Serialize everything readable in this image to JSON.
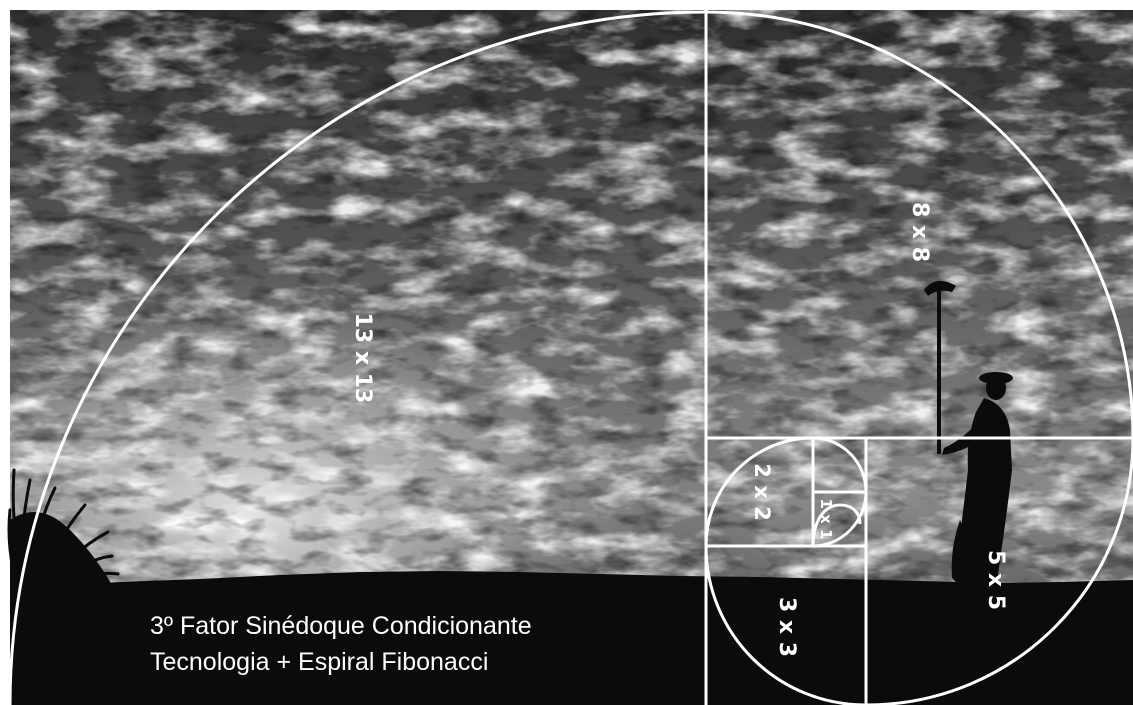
{
  "caption": {
    "line1": "3º Fator Sinédoque Condicionante",
    "line2": "Tecnologia + Espiral Fibonacci"
  },
  "fibonacci_tiles": [
    {
      "id": "13x13",
      "label": "13 x 13"
    },
    {
      "id": "8x8",
      "label": "8 x 8"
    },
    {
      "id": "5x5",
      "label": "5 x 5"
    },
    {
      "id": "3x3",
      "label": "3 x 3"
    },
    {
      "id": "2x2",
      "label": "2 x 2"
    },
    {
      "id": "1x1",
      "label": "1 x 1"
    }
  ],
  "colors": {
    "overlay_lines": "#ffffff",
    "sky_light": "#d8d8d8",
    "sky_dark": "#2a2a2a",
    "ground": "#0b0b0b",
    "frame": "#ffffff"
  },
  "image_style": "black-and-white photograph"
}
